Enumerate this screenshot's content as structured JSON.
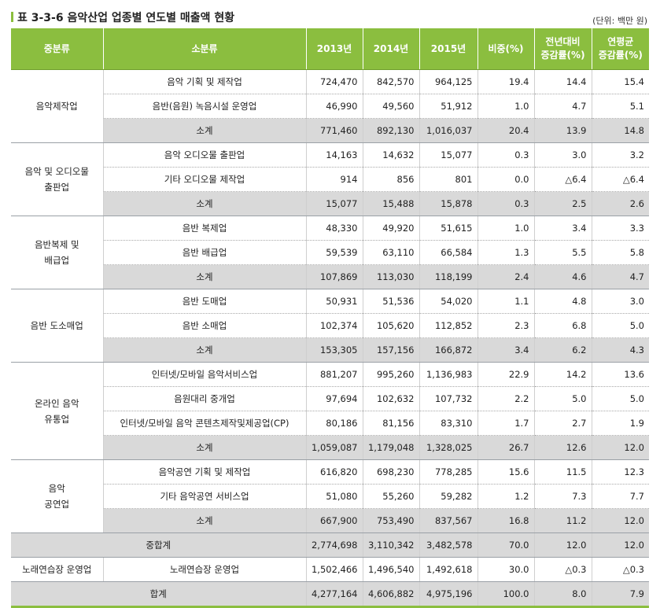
{
  "caption": {
    "title": "표 3-3-6  음악산업 업종별 연도별 매출액 현황",
    "unit": "(단위: 백만 원)"
  },
  "headers": {
    "group": "중분류",
    "subgroup": "소분류",
    "y2013": "2013년",
    "y2014": "2014년",
    "y2015": "2015년",
    "share": "비중(%)",
    "yoy_line1": "전년대비",
    "yoy_line2": "증감률(%)",
    "cagr_line1": "연평균",
    "cagr_line2": "증감률(%)"
  },
  "groups": [
    {
      "name": "음악제작업",
      "rows": [
        {
          "name": "음악 기획 및 제작업",
          "y2013": "724,470",
          "y2014": "842,570",
          "y2015": "964,125",
          "share": "19.4",
          "yoy": "14.4",
          "cagr": "15.4"
        },
        {
          "name": "음반(음원) 녹음시설 운영업",
          "y2013": "46,990",
          "y2014": "49,560",
          "y2015": "51,912",
          "share": "1.0",
          "yoy": "4.7",
          "cagr": "5.1"
        },
        {
          "name": "소계",
          "y2013": "771,460",
          "y2014": "892,130",
          "y2015": "1,016,037",
          "share": "20.4",
          "yoy": "13.9",
          "cagr": "14.8"
        }
      ]
    },
    {
      "name_line1": "음악 및 오디오물",
      "name_line2": "출판업",
      "rows": [
        {
          "name": "음악 오디오물 출판업",
          "y2013": "14,163",
          "y2014": "14,632",
          "y2015": "15,077",
          "share": "0.3",
          "yoy": "3.0",
          "cagr": "3.2"
        },
        {
          "name": "기타 오디오물 제작업",
          "y2013": "914",
          "y2014": "856",
          "y2015": "801",
          "share": "0.0",
          "yoy": "△6.4",
          "cagr": "△6.4"
        },
        {
          "name": "소계",
          "y2013": "15,077",
          "y2014": "15,488",
          "y2015": "15,878",
          "share": "0.3",
          "yoy": "2.5",
          "cagr": "2.6"
        }
      ]
    },
    {
      "name_line1": "음반복제 및",
      "name_line2": "배급업",
      "rows": [
        {
          "name": "음반 복제업",
          "y2013": "48,330",
          "y2014": "49,920",
          "y2015": "51,615",
          "share": "1.0",
          "yoy": "3.4",
          "cagr": "3.3"
        },
        {
          "name": "음반 배급업",
          "y2013": "59,539",
          "y2014": "63,110",
          "y2015": "66,584",
          "share": "1.3",
          "yoy": "5.5",
          "cagr": "5.8"
        },
        {
          "name": "소계",
          "y2013": "107,869",
          "y2014": "113,030",
          "y2015": "118,199",
          "share": "2.4",
          "yoy": "4.6",
          "cagr": "4.7"
        }
      ]
    },
    {
      "name": "음반 도소매업",
      "rows": [
        {
          "name": "음반 도매업",
          "y2013": "50,931",
          "y2014": "51,536",
          "y2015": "54,020",
          "share": "1.1",
          "yoy": "4.8",
          "cagr": "3.0"
        },
        {
          "name": "음반 소매업",
          "y2013": "102,374",
          "y2014": "105,620",
          "y2015": "112,852",
          "share": "2.3",
          "yoy": "6.8",
          "cagr": "5.0"
        },
        {
          "name": "소계",
          "y2013": "153,305",
          "y2014": "157,156",
          "y2015": "166,872",
          "share": "3.4",
          "yoy": "6.2",
          "cagr": "4.3"
        }
      ]
    },
    {
      "name_line1": "온라인 음악",
      "name_line2": "유통업",
      "rows": [
        {
          "name": "인터넷/모바일 음악서비스업",
          "y2013": "881,207",
          "y2014": "995,260",
          "y2015": "1,136,983",
          "share": "22.9",
          "yoy": "14.2",
          "cagr": "13.6"
        },
        {
          "name": "음원대리 중개업",
          "y2013": "97,694",
          "y2014": "102,632",
          "y2015": "107,732",
          "share": "2.2",
          "yoy": "5.0",
          "cagr": "5.0"
        },
        {
          "name": "인터넷/모바일 음악 콘텐츠제작및제공업(CP)",
          "y2013": "80,186",
          "y2014": "81,156",
          "y2015": "83,310",
          "share": "1.7",
          "yoy": "2.7",
          "cagr": "1.9"
        },
        {
          "name": "소계",
          "y2013": "1,059,087",
          "y2014": "1,179,048",
          "y2015": "1,328,025",
          "share": "26.7",
          "yoy": "12.6",
          "cagr": "12.0"
        }
      ]
    },
    {
      "name_line1": "음악",
      "name_line2": "공연업",
      "rows": [
        {
          "name": "음악공연 기획 및 제작업",
          "y2013": "616,820",
          "y2014": "698,230",
          "y2015": "778,285",
          "share": "15.6",
          "yoy": "11.5",
          "cagr": "12.3"
        },
        {
          "name": "기타 음악공연 서비스업",
          "y2013": "51,080",
          "y2014": "55,260",
          "y2015": "59,282",
          "share": "1.2",
          "yoy": "7.3",
          "cagr": "7.7"
        },
        {
          "name": "소계",
          "y2013": "667,900",
          "y2014": "753,490",
          "y2015": "837,567",
          "share": "16.8",
          "yoy": "11.2",
          "cagr": "12.0"
        }
      ]
    }
  ],
  "mid_total": {
    "name": "중합계",
    "y2013": "2,774,698",
    "y2014": "3,110,342",
    "y2015": "3,482,578",
    "share": "70.0",
    "yoy": "12.0",
    "cagr": "12.0"
  },
  "karaoke": {
    "group": "노래연습장 운영업",
    "name": "노래연습장 운영업",
    "y2013": "1,502,466",
    "y2014": "1,496,540",
    "y2015": "1,492,618",
    "share": "30.0",
    "yoy": "△0.3",
    "cagr": "△0.3"
  },
  "grand_total": {
    "name": "합계",
    "y2013": "4,277,164",
    "y2014": "4,606,882",
    "y2015": "4,975,196",
    "share": "100.0",
    "yoy": "8.0",
    "cagr": "7.9"
  },
  "colors": {
    "header_green": "#8bbe3f",
    "subtotal_gray": "#d9d9d9"
  }
}
